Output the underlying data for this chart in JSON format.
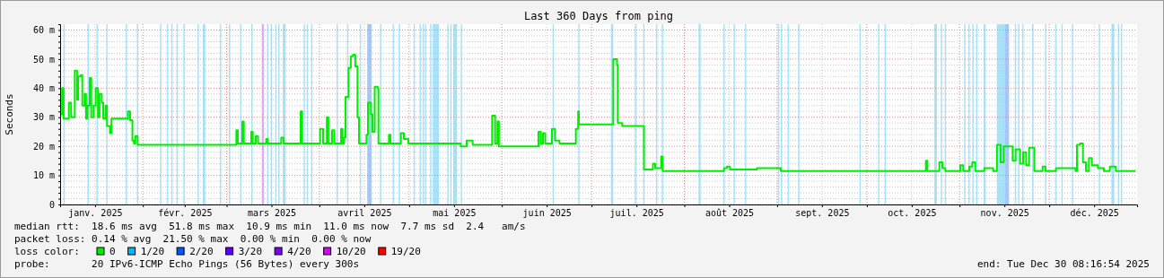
{
  "chart_data": {
    "type": "step",
    "title": "Last 360 Days from ping",
    "ylabel": "Seconds",
    "legend_title": "loss color:",
    "legend": "bottom",
    "grid": true,
    "marker": "none",
    "line_style": "solid",
    "xlim": [
      "2025-01-04T08:16",
      "2025-12-30T08:16"
    ],
    "xticks": [
      {
        "value": "2025-01-16",
        "label": "janv. 2025"
      },
      {
        "value": "2025-02-01",
        "label": null
      },
      {
        "value": "2025-02-15",
        "label": "févr. 2025"
      },
      {
        "value": "2025-03-01",
        "label": null
      },
      {
        "value": "2025-03-16",
        "label": "mars 2025"
      },
      {
        "value": "2025-04-01",
        "label": null
      },
      {
        "value": "2025-04-16",
        "label": "avril 2025"
      },
      {
        "value": "2025-05-01",
        "label": null
      },
      {
        "value": "2025-05-16",
        "label": "mai 2025"
      },
      {
        "value": "2025-06-01",
        "label": null
      },
      {
        "value": "2025-06-16",
        "label": "juin 2025"
      },
      {
        "value": "2025-07-01",
        "label": null
      },
      {
        "value": "2025-07-16",
        "label": "juil. 2025"
      },
      {
        "value": "2025-08-01",
        "label": null
      },
      {
        "value": "2025-08-16",
        "label": "août 2025"
      },
      {
        "value": "2025-09-01",
        "label": null
      },
      {
        "value": "2025-09-16",
        "label": "sept. 2025"
      },
      {
        "value": "2025-10-01",
        "label": null
      },
      {
        "value": "2025-10-16",
        "label": "oct. 2025"
      },
      {
        "value": "2025-11-01",
        "label": null
      },
      {
        "value": "2025-11-16",
        "label": "nov. 2025"
      },
      {
        "value": "2025-12-01",
        "label": null
      },
      {
        "value": "2025-12-16",
        "label": "déc. 2025"
      }
    ],
    "ylim": [
      0,
      62
    ],
    "yticks": [
      {
        "value": 0,
        "label": "0"
      },
      {
        "value": 2,
        "label": null
      },
      {
        "value": 4,
        "label": null
      },
      {
        "value": 6,
        "label": null
      },
      {
        "value": 8,
        "label": null
      },
      {
        "value": 10,
        "label": "10 m"
      },
      {
        "value": 12,
        "label": null
      },
      {
        "value": 14,
        "label": null
      },
      {
        "value": 16,
        "label": null
      },
      {
        "value": 18,
        "label": null
      },
      {
        "value": 20,
        "label": "20 m"
      },
      {
        "value": 22,
        "label": null
      },
      {
        "value": 24,
        "label": null
      },
      {
        "value": 26,
        "label": null
      },
      {
        "value": 28,
        "label": null
      },
      {
        "value": 30,
        "label": "30 m"
      },
      {
        "value": 32,
        "label": null
      },
      {
        "value": 34,
        "label": null
      },
      {
        "value": 36,
        "label": null
      },
      {
        "value": 38,
        "label": null
      },
      {
        "value": 40,
        "label": "40 m"
      },
      {
        "value": 42,
        "label": null
      },
      {
        "value": 44,
        "label": null
      },
      {
        "value": 46,
        "label": null
      },
      {
        "value": 48,
        "label": null
      },
      {
        "value": 50,
        "label": "50 m"
      },
      {
        "value": 52,
        "label": null
      },
      {
        "value": 54,
        "label": null
      },
      {
        "value": 56,
        "label": null
      },
      {
        "value": 58,
        "label": null
      },
      {
        "value": 60,
        "label": "60 m"
      }
    ],
    "series": [
      {
        "name": "0",
        "color": "#00ee00",
        "x": [
          "2025-01-04T09:00",
          "2025-01-05T00:00",
          "2025-01-05T12:00",
          "2025-01-07T06:00",
          "2025-01-08T00:00",
          "2025-01-09T06:00",
          "2025-01-10T00:00",
          "2025-01-10T09:00",
          "2025-01-11T06:00",
          "2025-01-11T18:00",
          "2025-01-12T12:00",
          "2025-01-13T00:00",
          "2025-01-13T12:00",
          "2025-01-14T06:00",
          "2025-01-14T18:00",
          "2025-01-15T12:00",
          "2025-01-16T06:00",
          "2025-01-17T00:00",
          "2025-01-17T12:00",
          "2025-01-18T06:00",
          "2025-01-18T18:00",
          "2025-01-19T12:00",
          "2025-01-20T00:00",
          "2025-01-21T00:00",
          "2025-01-21T12:00",
          "2025-01-27T00:00",
          "2025-01-27T18:00",
          "2025-01-28T12:00",
          "2025-01-29T00:00",
          "2025-01-29T12:00",
          "2025-01-30T06:00",
          "2025-03-04T06:00",
          "2025-03-04T18:00",
          "2025-03-06T06:00",
          "2025-03-06T18:00",
          "2025-03-09T06:00",
          "2025-03-09T18:00",
          "2025-03-10T18:00",
          "2025-03-11T12:00",
          "2025-03-14T06:00",
          "2025-03-14T18:00",
          "2025-03-19T06:00",
          "2025-03-20T00:00",
          "2025-03-25T18:00",
          "2025-03-26T06:00",
          "2025-04-01T06:00",
          "2025-04-02T06:00",
          "2025-04-03T12:00",
          "2025-04-04T00:00",
          "2025-04-05T06:00",
          "2025-04-06T00:00",
          "2025-04-08T06:00",
          "2025-04-08T18:00",
          "2025-04-09T06:00",
          "2025-04-09T18:00",
          "2025-04-10T18:00",
          "2025-04-11T12:00",
          "2025-04-12T06:00",
          "2025-04-13T00:00",
          "2025-04-13T18:00",
          "2025-04-14T06:00",
          "2025-04-16T18:00",
          "2025-04-17T06:00",
          "2025-04-18T06:00",
          "2025-04-18T18:00",
          "2025-04-19T12:00",
          "2025-04-20T12:00",
          "2025-04-20T18:00",
          "2025-04-24T06:00",
          "2025-04-24T18:00",
          "2025-04-28T06:00",
          "2025-04-29T06:00",
          "2025-04-30T18:00",
          "2025-05-18T06:00",
          "2025-05-20T06:00",
          "2025-05-22T06:00",
          "2025-05-28T18:00",
          "2025-05-29T18:00",
          "2025-05-30T12:00",
          "2025-05-31T00:00",
          "2025-06-13T06:00",
          "2025-06-14T00:00",
          "2025-06-14T18:00",
          "2025-06-15T12:00",
          "2025-06-17T18:00",
          "2025-06-18T18:00",
          "2025-06-20T06:00",
          "2025-06-25T18:00",
          "2025-06-26T12:00",
          "2025-06-26T18:00",
          "2025-07-08T06:00",
          "2025-07-09T12:00",
          "2025-07-09T18:00",
          "2025-07-11T06:00",
          "2025-07-18T12:00",
          "2025-07-21T12:00",
          "2025-07-22T06:00",
          "2025-07-24T06:00",
          "2025-07-24T18:00",
          "2025-08-14T06:00",
          "2025-08-15T06:00",
          "2025-08-16T06:00",
          "2025-08-25T06:00",
          "2025-09-02T06:00",
          "2025-10-20T18:00",
          "2025-10-21T06:00",
          "2025-10-25T06:00",
          "2025-10-26T06:00",
          "2025-10-27T06:00",
          "2025-11-01T06:00",
          "2025-11-02T06:00",
          "2025-11-04T06:00",
          "2025-11-05T06:00",
          "2025-11-06T06:00",
          "2025-11-09T06:00",
          "2025-11-12T06:00",
          "2025-11-13T12:00",
          "2025-11-14T18:00",
          "2025-11-15T18:00",
          "2025-11-18T18:00",
          "2025-11-19T18:00",
          "2025-11-21T06:00",
          "2025-11-22T06:00",
          "2025-11-23T06:00",
          "2025-11-24T06:00",
          "2025-11-26T00:00",
          "2025-11-28T18:00",
          "2025-11-29T18:00",
          "2025-12-03T06:00",
          "2025-12-09T18:00",
          "2025-12-10T06:00",
          "2025-12-11T06:00",
          "2025-12-12T06:00",
          "2025-12-13T06:00",
          "2025-12-14T06:00",
          "2025-12-15T06:00",
          "2025-12-17T06:00",
          "2025-12-19T06:00",
          "2025-12-21T06:00",
          "2025-12-23T06:00",
          "2025-12-29T18:00"
        ],
        "values": [
          31,
          40,
          29.5,
          35,
          30,
          46,
          36,
          44,
          44.5,
          34,
          38,
          29.5,
          34,
          43.5,
          30,
          34,
          40,
          30,
          38,
          35,
          29.5,
          34,
          27,
          24.5,
          29.5,
          32,
          29,
          22,
          21,
          23.5,
          20.5,
          25.5,
          21,
          28.5,
          21,
          25,
          21,
          23.5,
          21,
          22.5,
          21,
          23,
          21,
          32,
          21,
          26,
          21,
          30,
          21,
          25.5,
          21,
          26,
          21,
          23,
          37,
          47,
          51,
          51.5,
          47.5,
          30,
          21,
          24,
          35,
          31,
          25,
          40.5,
          40,
          21,
          24,
          21,
          24.5,
          22.5,
          21,
          20,
          22,
          20.5,
          30.5,
          21,
          28.5,
          20,
          25,
          21,
          24.5,
          21,
          26,
          22,
          21,
          26,
          32,
          27.5,
          50,
          48,
          28,
          27,
          12,
          14,
          12.5,
          16.5,
          11.5,
          12.5,
          13,
          12,
          12.5,
          11.5,
          15,
          11.5,
          14.5,
          12.5,
          11.5,
          13.5,
          11.5,
          13,
          14.5,
          11.5,
          12.5,
          11.5,
          20.5,
          14.5,
          20,
          15,
          19,
          14,
          18,
          13.5,
          19.5,
          11.5,
          13,
          11.5,
          12.5,
          11.5,
          20.5,
          21,
          14.5,
          11.5,
          16,
          13.5,
          12.5,
          11.5,
          13,
          11.5,
          11.5
        ]
      },
      {
        "name": "1/20",
        "color": "#00b8ff"
      },
      {
        "name": "2/20",
        "color": "#0059ff"
      },
      {
        "name": "3/20",
        "color": "#5e00ff"
      },
      {
        "name": "4/20",
        "color": "#7e00ff"
      },
      {
        "name": "10/20",
        "color": "#dd00ff"
      },
      {
        "name": "19/20",
        "color": "#ff0000"
      }
    ],
    "bands": [
      {
        "axis": "x",
        "from": "2025-01-05T11:00",
        "to": "2025-01-05T19:00",
        "color": "#a6e3fb"
      },
      {
        "axis": "x",
        "from": "2025-01-13T12:00",
        "to": "2025-01-13T20:00",
        "color": "#a6e3fb"
      },
      {
        "axis": "x",
        "from": "2025-01-16T12:00",
        "to": "2025-01-16T20:00",
        "color": "#a6e3fb"
      },
      {
        "axis": "x",
        "from": "2025-01-19T18:00",
        "to": "2025-01-20T02:00",
        "color": "#a6e3fb"
      },
      {
        "axis": "x",
        "from": "2025-01-26T06:00",
        "to": "2025-01-26T14:00",
        "color": "#a6e3fb"
      },
      {
        "axis": "x",
        "from": "2025-01-30T00:00",
        "to": "2025-01-30T08:00",
        "color": "#a6e3fb"
      },
      {
        "axis": "x",
        "from": "2025-02-06T18:00",
        "to": "2025-02-07T02:00",
        "color": "#a6e3fb"
      },
      {
        "axis": "x",
        "from": "2025-02-09T00:00",
        "to": "2025-02-09T08:00",
        "color": "#a6e3fb"
      },
      {
        "axis": "x",
        "from": "2025-02-10T12:00",
        "to": "2025-02-10T20:00",
        "color": "#a6e3fb"
      },
      {
        "axis": "x",
        "from": "2025-02-12T06:00",
        "to": "2025-02-12T14:00",
        "color": "#a6e3fb"
      },
      {
        "axis": "x",
        "from": "2025-02-14T12:00",
        "to": "2025-02-14T20:00",
        "color": "#a6e3fb"
      },
      {
        "axis": "x",
        "from": "2025-02-19T06:00",
        "to": "2025-02-19T14:00",
        "color": "#a6e3fb"
      },
      {
        "axis": "x",
        "from": "2025-02-21T00:00",
        "to": "2025-02-21T21:00",
        "color": "#a6e3fb"
      },
      {
        "axis": "x",
        "from": "2025-02-26T18:00",
        "to": "2025-02-27T02:00",
        "color": "#a6e3fb"
      },
      {
        "axis": "x",
        "from": "2025-03-01T18:00",
        "to": "2025-03-02T02:00",
        "color": "#a6e3fb"
      },
      {
        "axis": "x",
        "from": "2025-03-05T12:00",
        "to": "2025-03-05T20:00",
        "color": "#a6e3fb"
      },
      {
        "axis": "x",
        "from": "2025-03-09T06:00",
        "to": "2025-03-09T14:00",
        "color": "#a6e3fb"
      },
      {
        "axis": "x",
        "from": "2025-03-12T18:00",
        "to": "2025-03-13T12:00",
        "color": "#e8a6fb"
      },
      {
        "axis": "x",
        "from": "2025-03-14T12:00",
        "to": "2025-03-14T20:00",
        "color": "#a6e3fb"
      },
      {
        "axis": "x",
        "from": "2025-03-15T18:00",
        "to": "2025-03-16T02:00",
        "color": "#a6e3fb"
      },
      {
        "axis": "x",
        "from": "2025-03-17T06:00",
        "to": "2025-03-17T14:00",
        "color": "#a6e3fb"
      },
      {
        "axis": "x",
        "from": "2025-03-18T06:00",
        "to": "2025-03-18T14:00",
        "color": "#a6e3fb"
      },
      {
        "axis": "x",
        "from": "2025-03-19T18:00",
        "to": "2025-03-20T18:00",
        "color": "#a6e3fb"
      },
      {
        "axis": "x",
        "from": "2025-03-26T18:00",
        "to": "2025-03-27T02:00",
        "color": "#a6e3fb"
      },
      {
        "axis": "x",
        "from": "2025-03-27T18:00",
        "to": "2025-03-28T02:00",
        "color": "#a6e3fb"
      },
      {
        "axis": "x",
        "from": "2025-03-29T06:00",
        "to": "2025-03-29T14:00",
        "color": "#a6e3fb"
      },
      {
        "axis": "x",
        "from": "2025-04-06T18:00",
        "to": "2025-04-07T02:00",
        "color": "#a6e3fb"
      },
      {
        "axis": "x",
        "from": "2025-04-10T06:00",
        "to": "2025-04-10T14:00",
        "color": "#a6e3fb"
      },
      {
        "axis": "x",
        "from": "2025-04-14T12:00",
        "to": "2025-04-14T20:00",
        "color": "#a6e3fb"
      },
      {
        "axis": "x",
        "from": "2025-04-17T00:00",
        "to": "2025-04-18T12:00",
        "color": "#a0c8ff"
      },
      {
        "axis": "x",
        "from": "2025-04-21T06:00",
        "to": "2025-04-21T14:00",
        "color": "#a6e3fb"
      },
      {
        "axis": "x",
        "from": "2025-04-25T12:00",
        "to": "2025-04-25T20:00",
        "color": "#a6e3fb"
      },
      {
        "axis": "x",
        "from": "2025-04-27T12:00",
        "to": "2025-04-27T20:00",
        "color": "#a6e3fb"
      },
      {
        "axis": "x",
        "from": "2025-05-02T12:00",
        "to": "2025-05-02T20:00",
        "color": "#a6e3fb"
      },
      {
        "axis": "x",
        "from": "2025-05-04T12:00",
        "to": "2025-05-04T20:00",
        "color": "#a6e3fb"
      },
      {
        "axis": "x",
        "from": "2025-05-05T12:00",
        "to": "2025-05-05T20:00",
        "color": "#a6e3fb"
      },
      {
        "axis": "x",
        "from": "2025-05-06T06:00",
        "to": "2025-05-06T14:00",
        "color": "#a6e3fb"
      },
      {
        "axis": "x",
        "from": "2025-05-08T00:00",
        "to": "2025-05-08T07:00",
        "color": "#a6e3fb"
      },
      {
        "axis": "x",
        "from": "2025-05-08T22:00",
        "to": "2025-05-10T23:00",
        "color": "#a6e3fb"
      },
      {
        "axis": "x",
        "from": "2025-05-13T18:00",
        "to": "2025-05-14T02:00",
        "color": "#a6e3fb"
      },
      {
        "axis": "x",
        "from": "2025-05-14T18:00",
        "to": "2025-05-15T02:00",
        "color": "#a6e3fb"
      },
      {
        "axis": "x",
        "from": "2025-05-15T18:00",
        "to": "2025-05-17T01:00",
        "color": "#a6e3fb"
      },
      {
        "axis": "x",
        "from": "2025-05-18T06:00",
        "to": "2025-05-18T14:00",
        "color": "#a6e3fb"
      },
      {
        "axis": "x",
        "from": "2025-06-17T23:00",
        "to": "2025-06-18T07:00",
        "color": "#a6e3fb"
      },
      {
        "axis": "x",
        "from": "2025-06-26T13:00",
        "to": "2025-06-26T21:00",
        "color": "#a6e3fb"
      },
      {
        "axis": "x",
        "from": "2025-07-07T11:00",
        "to": "2025-07-08T06:00",
        "color": "#a6e3fb"
      },
      {
        "axis": "x",
        "from": "2025-07-15T11:00",
        "to": "2025-07-15T19:00",
        "color": "#a6e3fb"
      },
      {
        "axis": "x",
        "from": "2025-07-18T06:00",
        "to": "2025-07-18T14:00",
        "color": "#a6e3fb"
      },
      {
        "axis": "x",
        "from": "2025-07-22T13:00",
        "to": "2025-07-22T21:00",
        "color": "#a6e3fb"
      },
      {
        "axis": "x",
        "from": "2025-07-24T11:00",
        "to": "2025-07-24T19:00",
        "color": "#a6e3fb"
      },
      {
        "axis": "x",
        "from": "2025-08-05T18:00",
        "to": "2025-08-06T11:00",
        "color": "#a6e3fb"
      },
      {
        "axis": "x",
        "from": "2025-08-14T01:00",
        "to": "2025-08-14T09:00",
        "color": "#a6e3fb"
      },
      {
        "axis": "x",
        "from": "2025-08-17T11:00",
        "to": "2025-08-17T19:00",
        "color": "#a6e3fb"
      },
      {
        "axis": "x",
        "from": "2025-08-21T06:00",
        "to": "2025-08-21T14:00",
        "color": "#a6e3fb"
      },
      {
        "axis": "x",
        "from": "2025-09-01T06:00",
        "to": "2025-09-01T14:00",
        "color": "#a6e3fb"
      },
      {
        "axis": "x",
        "from": "2025-09-02T06:00",
        "to": "2025-09-02T14:00",
        "color": "#a6e3fb"
      },
      {
        "axis": "x",
        "from": "2025-09-04T13:00",
        "to": "2025-09-04T21:00",
        "color": "#a6e3fb"
      },
      {
        "axis": "x",
        "from": "2025-09-08T01:00",
        "to": "2025-09-08T09:00",
        "color": "#a6e3fb"
      },
      {
        "axis": "x",
        "from": "2025-09-28T13:00",
        "to": "2025-09-28T21:00",
        "color": "#a6e3fb"
      },
      {
        "axis": "x",
        "from": "2025-10-04T18:00",
        "to": "2025-10-05T02:00",
        "color": "#a6e3fb"
      },
      {
        "axis": "x",
        "from": "2025-10-06T23:00",
        "to": "2025-10-07T07:00",
        "color": "#a6e3fb"
      },
      {
        "axis": "x",
        "from": "2025-10-23T13:00",
        "to": "2025-10-24T11:00",
        "color": "#a6e3fb"
      },
      {
        "axis": "x",
        "from": "2025-10-25T18:00",
        "to": "2025-10-26T02:00",
        "color": "#a6e3fb"
      },
      {
        "axis": "x",
        "from": "2025-10-27T01:00",
        "to": "2025-10-27T09:00",
        "color": "#a6e3fb"
      },
      {
        "axis": "x",
        "from": "2025-11-02T13:00",
        "to": "2025-11-02T21:00",
        "color": "#a6e3fb"
      },
      {
        "axis": "x",
        "from": "2025-11-03T23:00",
        "to": "2025-11-04T07:00",
        "color": "#a6e3fb"
      },
      {
        "axis": "x",
        "from": "2025-11-05T06:00",
        "to": "2025-11-05T14:00",
        "color": "#a6e3fb"
      },
      {
        "axis": "x",
        "from": "2025-11-06T13:00",
        "to": "2025-11-06T21:00",
        "color": "#a6e3fb"
      },
      {
        "axis": "x",
        "from": "2025-11-09T01:00",
        "to": "2025-11-09T18:00",
        "color": "#a6e3fb"
      },
      {
        "axis": "x",
        "from": "2025-11-13T11:00",
        "to": "2025-11-16T06:00",
        "color": "#a6e3fb"
      },
      {
        "axis": "x",
        "from": "2025-11-16T06:00",
        "to": "2025-11-17T13:00",
        "color": "#a0c8ff"
      },
      {
        "axis": "x",
        "from": "2025-11-19T11:00",
        "to": "2025-11-19T19:00",
        "color": "#a6e3fb"
      },
      {
        "axis": "x",
        "from": "2025-11-20T13:00",
        "to": "2025-11-20T21:00",
        "color": "#a6e3fb"
      },
      {
        "axis": "x",
        "from": "2025-11-21T23:00",
        "to": "2025-11-22T07:00",
        "color": "#a6e3fb"
      },
      {
        "axis": "x",
        "from": "2025-11-25T06:00",
        "to": "2025-11-25T18:00",
        "color": "#a6e3fb"
      },
      {
        "axis": "x",
        "from": "2025-11-29T13:00",
        "to": "2025-11-29T21:00",
        "color": "#a6e3fb"
      },
      {
        "axis": "x",
        "from": "2025-12-02T23:00",
        "to": "2025-12-03T07:00",
        "color": "#a6e3fb"
      },
      {
        "axis": "x",
        "from": "2025-12-05T01:00",
        "to": "2025-12-05T09:00",
        "color": "#a6e3fb"
      },
      {
        "axis": "x",
        "from": "2025-12-08T13:00",
        "to": "2025-12-08T21:00",
        "color": "#a6e3fb"
      },
      {
        "axis": "x",
        "from": "2025-12-17T13:00",
        "to": "2025-12-17T21:00",
        "color": "#a6e3fb"
      },
      {
        "axis": "x",
        "from": "2025-12-21T18:00",
        "to": "2025-12-22T18:00",
        "color": "#a6e3fb"
      },
      {
        "axis": "x",
        "from": "2025-12-23T22:00",
        "to": "2025-12-24T06:00",
        "color": "#a6e3fb"
      },
      {
        "axis": "x",
        "from": "2025-12-24T22:00",
        "to": "2025-12-25T06:00",
        "color": "#a6e3fb"
      }
    ],
    "annotations": [
      "median rtt:  18.6 ms avg  51.8 ms max  10.9 ms min  11.0 ms now  7.7 ms sd  2.4   am/s",
      "packet loss: 0.14 % avg  21.50 % max  0.00 % min  0.00 % now",
      "probe:       20 IPv6-ICMP Echo Pings (56 Bytes) every 300s",
      "end: Tue Dec 30 08:16:54 2025"
    ]
  }
}
